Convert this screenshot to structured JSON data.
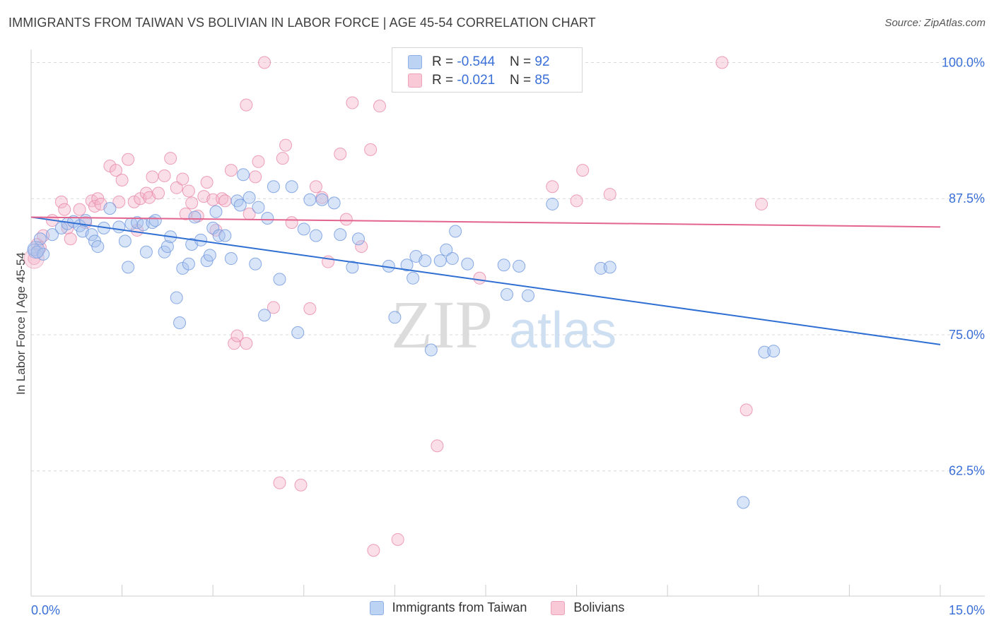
{
  "header": {
    "title": "IMMIGRANTS FROM TAIWAN VS BOLIVIAN IN LABOR FORCE | AGE 45-54 CORRELATION CHART",
    "source": "Source: ZipAtlas.com"
  },
  "watermark": {
    "zip": "ZIP",
    "atlas": "atlas"
  },
  "colors": {
    "taiwan_fill": "#a9c4ee",
    "taiwan_stroke": "#6f97de",
    "taiwan_line": "#2f6fd3",
    "bolivian_fill": "#f5b6cb",
    "bolivian_stroke": "#e88aa9",
    "bolivian_line": "#e2648f",
    "tick_label": "#3a6fd8",
    "grid": "#d9d9d9"
  },
  "legend_top": [
    {
      "r_label": "R = ",
      "r_value": "-0.544",
      "n_label": "N = ",
      "n_value": "92"
    },
    {
      "r_label": "R = ",
      "r_value": "-0.021",
      "n_label": "N = ",
      "n_value": "85"
    }
  ],
  "chart_data": {
    "type": "scatter",
    "title": "IMMIGRANTS FROM TAIWAN VS BOLIVIAN IN LABOR FORCE | AGE 45-54 CORRELATION CHART",
    "xlabel": "",
    "ylabel": "In Labor Force | Age 45-54",
    "xlim": [
      0,
      15
    ],
    "ylim": [
      51,
      101.2
    ],
    "x_tick_labels": [
      "0.0%",
      "15.0%"
    ],
    "y_ticks": [
      62.5,
      75.0,
      87.5,
      100.0
    ],
    "y_tick_labels": [
      "62.5%",
      "75.0%",
      "87.5%",
      "100.0%"
    ],
    "grid": true,
    "legend_position": "bottom",
    "series": [
      {
        "name": "Immigrants from Taiwan",
        "r": -0.544,
        "n": 92,
        "trend": {
          "x": [
            0,
            15
          ],
          "y": [
            85.8,
            74.1
          ]
        },
        "points": [
          [
            0.05,
            82.8
          ],
          [
            0.1,
            82.6
          ],
          [
            0.2,
            82.4
          ],
          [
            0.15,
            83.8
          ],
          [
            0.35,
            84.2
          ],
          [
            0.5,
            84.8
          ],
          [
            0.6,
            85.2
          ],
          [
            0.7,
            85.4
          ],
          [
            0.8,
            85.0
          ],
          [
            0.85,
            84.5
          ],
          [
            0.9,
            85.5
          ],
          [
            1.0,
            84.2
          ],
          [
            1.05,
            83.6
          ],
          [
            1.1,
            83.1
          ],
          [
            1.2,
            84.8
          ],
          [
            1.3,
            86.6
          ],
          [
            1.45,
            84.9
          ],
          [
            1.55,
            83.6
          ],
          [
            1.6,
            81.2
          ],
          [
            1.65,
            85.2
          ],
          [
            1.75,
            85.3
          ],
          [
            1.85,
            85.1
          ],
          [
            1.9,
            82.6
          ],
          [
            2.0,
            85.3
          ],
          [
            2.05,
            85.5
          ],
          [
            2.2,
            82.6
          ],
          [
            2.25,
            83.1
          ],
          [
            2.3,
            84.0
          ],
          [
            2.4,
            78.4
          ],
          [
            2.45,
            76.1
          ],
          [
            2.5,
            81.1
          ],
          [
            2.6,
            81.5
          ],
          [
            2.65,
            83.3
          ],
          [
            2.7,
            85.8
          ],
          [
            2.8,
            83.7
          ],
          [
            2.9,
            81.8
          ],
          [
            2.95,
            82.3
          ],
          [
            3.0,
            84.8
          ],
          [
            3.05,
            86.3
          ],
          [
            3.1,
            84.1
          ],
          [
            3.2,
            84.1
          ],
          [
            3.3,
            82.0
          ],
          [
            3.4,
            87.3
          ],
          [
            3.45,
            86.9
          ],
          [
            3.5,
            89.7
          ],
          [
            3.6,
            87.6
          ],
          [
            3.7,
            81.5
          ],
          [
            3.75,
            86.7
          ],
          [
            3.85,
            76.8
          ],
          [
            3.9,
            85.7
          ],
          [
            4.0,
            88.6
          ],
          [
            4.1,
            80.1
          ],
          [
            4.3,
            88.6
          ],
          [
            4.4,
            75.2
          ],
          [
            4.5,
            84.7
          ],
          [
            4.6,
            87.4
          ],
          [
            4.7,
            84.1
          ],
          [
            4.8,
            87.4
          ],
          [
            5.0,
            87.1
          ],
          [
            5.1,
            84.2
          ],
          [
            5.3,
            81.2
          ],
          [
            5.4,
            83.8
          ],
          [
            5.9,
            81.3
          ],
          [
            6.0,
            76.6
          ],
          [
            6.2,
            81.4
          ],
          [
            6.3,
            80.2
          ],
          [
            6.35,
            82.2
          ],
          [
            6.5,
            81.8
          ],
          [
            6.6,
            73.6
          ],
          [
            6.75,
            81.8
          ],
          [
            6.85,
            82.8
          ],
          [
            6.95,
            82.0
          ],
          [
            7.0,
            84.5
          ],
          [
            7.2,
            81.5
          ],
          [
            7.8,
            81.4
          ],
          [
            7.85,
            78.7
          ],
          [
            8.05,
            81.3
          ],
          [
            8.2,
            78.6
          ],
          [
            8.6,
            87.0
          ],
          [
            9.4,
            81.1
          ],
          [
            9.55,
            81.2
          ],
          [
            12.1,
            73.4
          ],
          [
            12.25,
            73.5
          ],
          [
            11.75,
            59.6
          ]
        ]
      },
      {
        "name": "Bolivians",
        "r": -0.021,
        "n": 85,
        "trend": {
          "x": [
            0,
            15
          ],
          "y": [
            85.8,
            84.9
          ]
        },
        "points": [
          [
            0.05,
            82.0
          ],
          [
            0.1,
            83.3
          ],
          [
            0.15,
            83.0
          ],
          [
            0.2,
            84.1
          ],
          [
            0.35,
            85.5
          ],
          [
            0.5,
            87.2
          ],
          [
            0.55,
            86.5
          ],
          [
            0.6,
            84.8
          ],
          [
            0.65,
            83.8
          ],
          [
            0.8,
            86.5
          ],
          [
            0.9,
            85.3
          ],
          [
            1.0,
            87.3
          ],
          [
            1.05,
            86.8
          ],
          [
            1.1,
            87.5
          ],
          [
            1.15,
            87.0
          ],
          [
            1.3,
            90.5
          ],
          [
            1.4,
            90.1
          ],
          [
            1.45,
            87.2
          ],
          [
            1.5,
            89.2
          ],
          [
            1.6,
            91.1
          ],
          [
            1.7,
            87.2
          ],
          [
            1.75,
            84.6
          ],
          [
            1.8,
            87.5
          ],
          [
            1.9,
            88.0
          ],
          [
            1.95,
            87.6
          ],
          [
            2.0,
            89.5
          ],
          [
            2.1,
            88.0
          ],
          [
            2.2,
            89.6
          ],
          [
            2.3,
            91.2
          ],
          [
            2.4,
            88.5
          ],
          [
            2.5,
            89.3
          ],
          [
            2.55,
            86.1
          ],
          [
            2.6,
            88.2
          ],
          [
            2.65,
            87.1
          ],
          [
            2.75,
            85.9
          ],
          [
            2.85,
            87.7
          ],
          [
            2.9,
            89.0
          ],
          [
            3.0,
            87.4
          ],
          [
            3.05,
            84.6
          ],
          [
            3.15,
            87.5
          ],
          [
            3.2,
            87.3
          ],
          [
            3.3,
            90.1
          ],
          [
            3.35,
            74.2
          ],
          [
            3.4,
            74.9
          ],
          [
            3.55,
            74.2
          ],
          [
            3.55,
            96.1
          ],
          [
            3.6,
            86.1
          ],
          [
            3.7,
            89.5
          ],
          [
            3.75,
            90.9
          ],
          [
            3.85,
            100.0
          ],
          [
            4.0,
            77.5
          ],
          [
            4.1,
            61.4
          ],
          [
            4.15,
            91.2
          ],
          [
            4.2,
            92.4
          ],
          [
            4.3,
            85.3
          ],
          [
            4.45,
            61.2
          ],
          [
            4.6,
            77.4
          ],
          [
            4.7,
            88.6
          ],
          [
            4.8,
            87.6
          ],
          [
            4.9,
            81.7
          ],
          [
            5.1,
            91.6
          ],
          [
            5.2,
            85.6
          ],
          [
            5.3,
            96.3
          ],
          [
            5.45,
            83.1
          ],
          [
            5.6,
            92.0
          ],
          [
            5.65,
            55.2
          ],
          [
            5.75,
            96.0
          ],
          [
            6.05,
            56.2
          ],
          [
            6.7,
            64.8
          ],
          [
            7.4,
            80.2
          ],
          [
            8.2,
            100.0
          ],
          [
            8.6,
            88.6
          ],
          [
            9.0,
            87.3
          ],
          [
            9.1,
            90.1
          ],
          [
            9.55,
            87.9
          ],
          [
            11.4,
            100.0
          ],
          [
            11.8,
            68.1
          ],
          [
            12.05,
            87.0
          ]
        ]
      }
    ]
  }
}
